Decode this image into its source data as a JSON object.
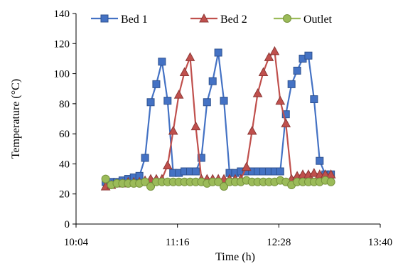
{
  "chart_data": {
    "type": "line",
    "xlabel": "Time (h)",
    "ylabel": "Temperature (°C)",
    "xlim": [
      "10:04",
      "13:40"
    ],
    "ylim": [
      0,
      140
    ],
    "x_ticks": [
      "10:04",
      "11:16",
      "12:28",
      "13:40"
    ],
    "y_ticks": [
      0,
      20,
      40,
      60,
      80,
      100,
      120,
      140
    ],
    "grid": false,
    "legend_position": "top",
    "series": [
      {
        "name": "Bed 1",
        "color": "#4472C4",
        "marker": "square",
        "x": [
          "10:25",
          "10:29",
          "10:33",
          "10:37",
          "10:41",
          "10:45",
          "10:49",
          "10:53",
          "10:57",
          "11:01",
          "11:05",
          "11:09",
          "11:13",
          "11:17",
          "11:21",
          "11:25",
          "11:29",
          "11:33",
          "11:37",
          "11:41",
          "11:45",
          "11:49",
          "11:53",
          "11:57",
          "12:01",
          "12:05",
          "12:09",
          "12:13",
          "12:17",
          "12:21",
          "12:25",
          "12:29",
          "12:33",
          "12:37",
          "12:41",
          "12:45",
          "12:49",
          "12:53",
          "12:57",
          "13:01",
          "13:05"
        ],
        "values": [
          28,
          28,
          28,
          29,
          30,
          31,
          32,
          44,
          81,
          93,
          108,
          82,
          34,
          34,
          35,
          35,
          35,
          44,
          81,
          95,
          114,
          82,
          34,
          34,
          35,
          35,
          35,
          35,
          35,
          35,
          35,
          35,
          73,
          93,
          102,
          110,
          112,
          83,
          42,
          33,
          33
        ]
      },
      {
        "name": "Bed 2",
        "color": "#C0504D",
        "marker": "triangle",
        "x": [
          "10:25",
          "10:29",
          "10:33",
          "10:37",
          "10:41",
          "10:45",
          "10:49",
          "10:53",
          "10:57",
          "11:01",
          "11:05",
          "11:09",
          "11:13",
          "11:17",
          "11:21",
          "11:25",
          "11:29",
          "11:33",
          "11:37",
          "11:41",
          "11:45",
          "11:49",
          "11:53",
          "11:57",
          "12:01",
          "12:05",
          "12:09",
          "12:13",
          "12:17",
          "12:21",
          "12:25",
          "12:29",
          "12:33",
          "12:37",
          "12:41",
          "12:45",
          "12:49",
          "12:53",
          "12:57",
          "13:01",
          "13:05"
        ],
        "values": [
          25,
          26,
          27,
          27,
          28,
          28,
          28,
          29,
          30,
          30,
          30,
          39,
          62,
          86,
          101,
          111,
          65,
          30,
          30,
          30,
          30,
          30,
          30,
          30,
          30,
          38,
          62,
          87,
          101,
          111,
          115,
          82,
          67,
          30,
          32,
          33,
          33,
          34,
          33,
          33,
          33
        ]
      },
      {
        "name": "Outlet",
        "color": "#9BBB59",
        "marker": "circle",
        "x": [
          "10:25",
          "10:29",
          "10:33",
          "10:37",
          "10:41",
          "10:45",
          "10:49",
          "10:53",
          "10:57",
          "11:01",
          "11:05",
          "11:09",
          "11:13",
          "11:17",
          "11:21",
          "11:25",
          "11:29",
          "11:33",
          "11:37",
          "11:41",
          "11:45",
          "11:49",
          "11:53",
          "11:57",
          "12:01",
          "12:05",
          "12:09",
          "12:13",
          "12:17",
          "12:21",
          "12:25",
          "12:29",
          "12:33",
          "12:37",
          "12:41",
          "12:45",
          "12:49",
          "12:53",
          "12:57",
          "13:01",
          "13:05"
        ],
        "values": [
          30,
          26,
          27,
          27,
          27,
          27,
          27,
          28,
          25,
          28,
          28,
          28,
          28,
          28,
          28,
          28,
          28,
          28,
          27,
          28,
          28,
          25,
          28,
          28,
          28,
          29,
          28,
          28,
          28,
          28,
          28,
          29,
          28,
          26,
          28,
          28,
          28,
          28,
          28,
          29,
          28
        ]
      }
    ]
  }
}
